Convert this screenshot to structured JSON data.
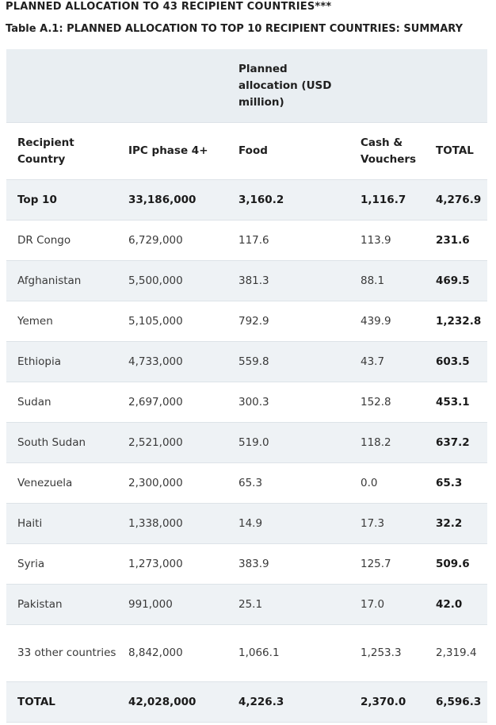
{
  "heading": "PLANNED ALLOCATION TO 43 RECIPIENT COUNTRIES***",
  "caption": "Table A.1: PLANNED ALLOCATION TO TOP 10 RECIPIENT COUNTRIES: SUMMARY",
  "table": {
    "group_header": "Planned allocation (USD million)",
    "columns": [
      "Recipient Country",
      "IPC phase 4+",
      "Food",
      "Cash & Vouchers",
      "TOTAL"
    ],
    "rows": [
      {
        "country": "Top 10",
        "ipc": "33,186,000",
        "food": "3,160.2",
        "cash": "1,116.7",
        "total": "4,276.9"
      },
      {
        "country": "DR Congo",
        "ipc": "6,729,000",
        "food": "117.6",
        "cash": "113.9",
        "total": "231.6"
      },
      {
        "country": "Afghanistan",
        "ipc": "5,500,000",
        "food": "381.3",
        "cash": "88.1",
        "total": "469.5"
      },
      {
        "country": "Yemen",
        "ipc": "5,105,000",
        "food": "792.9",
        "cash": "439.9",
        "total": "1,232.8"
      },
      {
        "country": "Ethiopia",
        "ipc": "4,733,000",
        "food": "559.8",
        "cash": "43.7",
        "total": "603.5"
      },
      {
        "country": "Sudan",
        "ipc": "2,697,000",
        "food": "300.3",
        "cash": "152.8",
        "total": "453.1"
      },
      {
        "country": "South Sudan",
        "ipc": "2,521,000",
        "food": "519.0",
        "cash": "118.2",
        "total": "637.2"
      },
      {
        "country": "Venezuela",
        "ipc": "2,300,000",
        "food": "65.3",
        "cash": "0.0",
        "total": "65.3"
      },
      {
        "country": "Haiti",
        "ipc": "1,338,000",
        "food": "14.9",
        "cash": "17.3",
        "total": "32.2"
      },
      {
        "country": "Syria",
        "ipc": "1,273,000",
        "food": "383.9",
        "cash": "125.7",
        "total": "509.6"
      },
      {
        "country": "Pakistan",
        "ipc": "991,000",
        "food": "25.1",
        "cash": "17.0",
        "total": "42.0"
      },
      {
        "country": "33 other countries",
        "ipc": "8,842,000",
        "food": "1,066.1",
        "cash": "1,253.3",
        "total": "2,319.4"
      },
      {
        "country": "TOTAL",
        "ipc": "42,028,000",
        "food": "4,226.3",
        "cash": "2,370.0",
        "total": "6,596.3"
      }
    ]
  },
  "colors": {
    "row_shade": "#eef2f5",
    "header_shade": "#e9eef2",
    "rule": "#dde3e8"
  }
}
